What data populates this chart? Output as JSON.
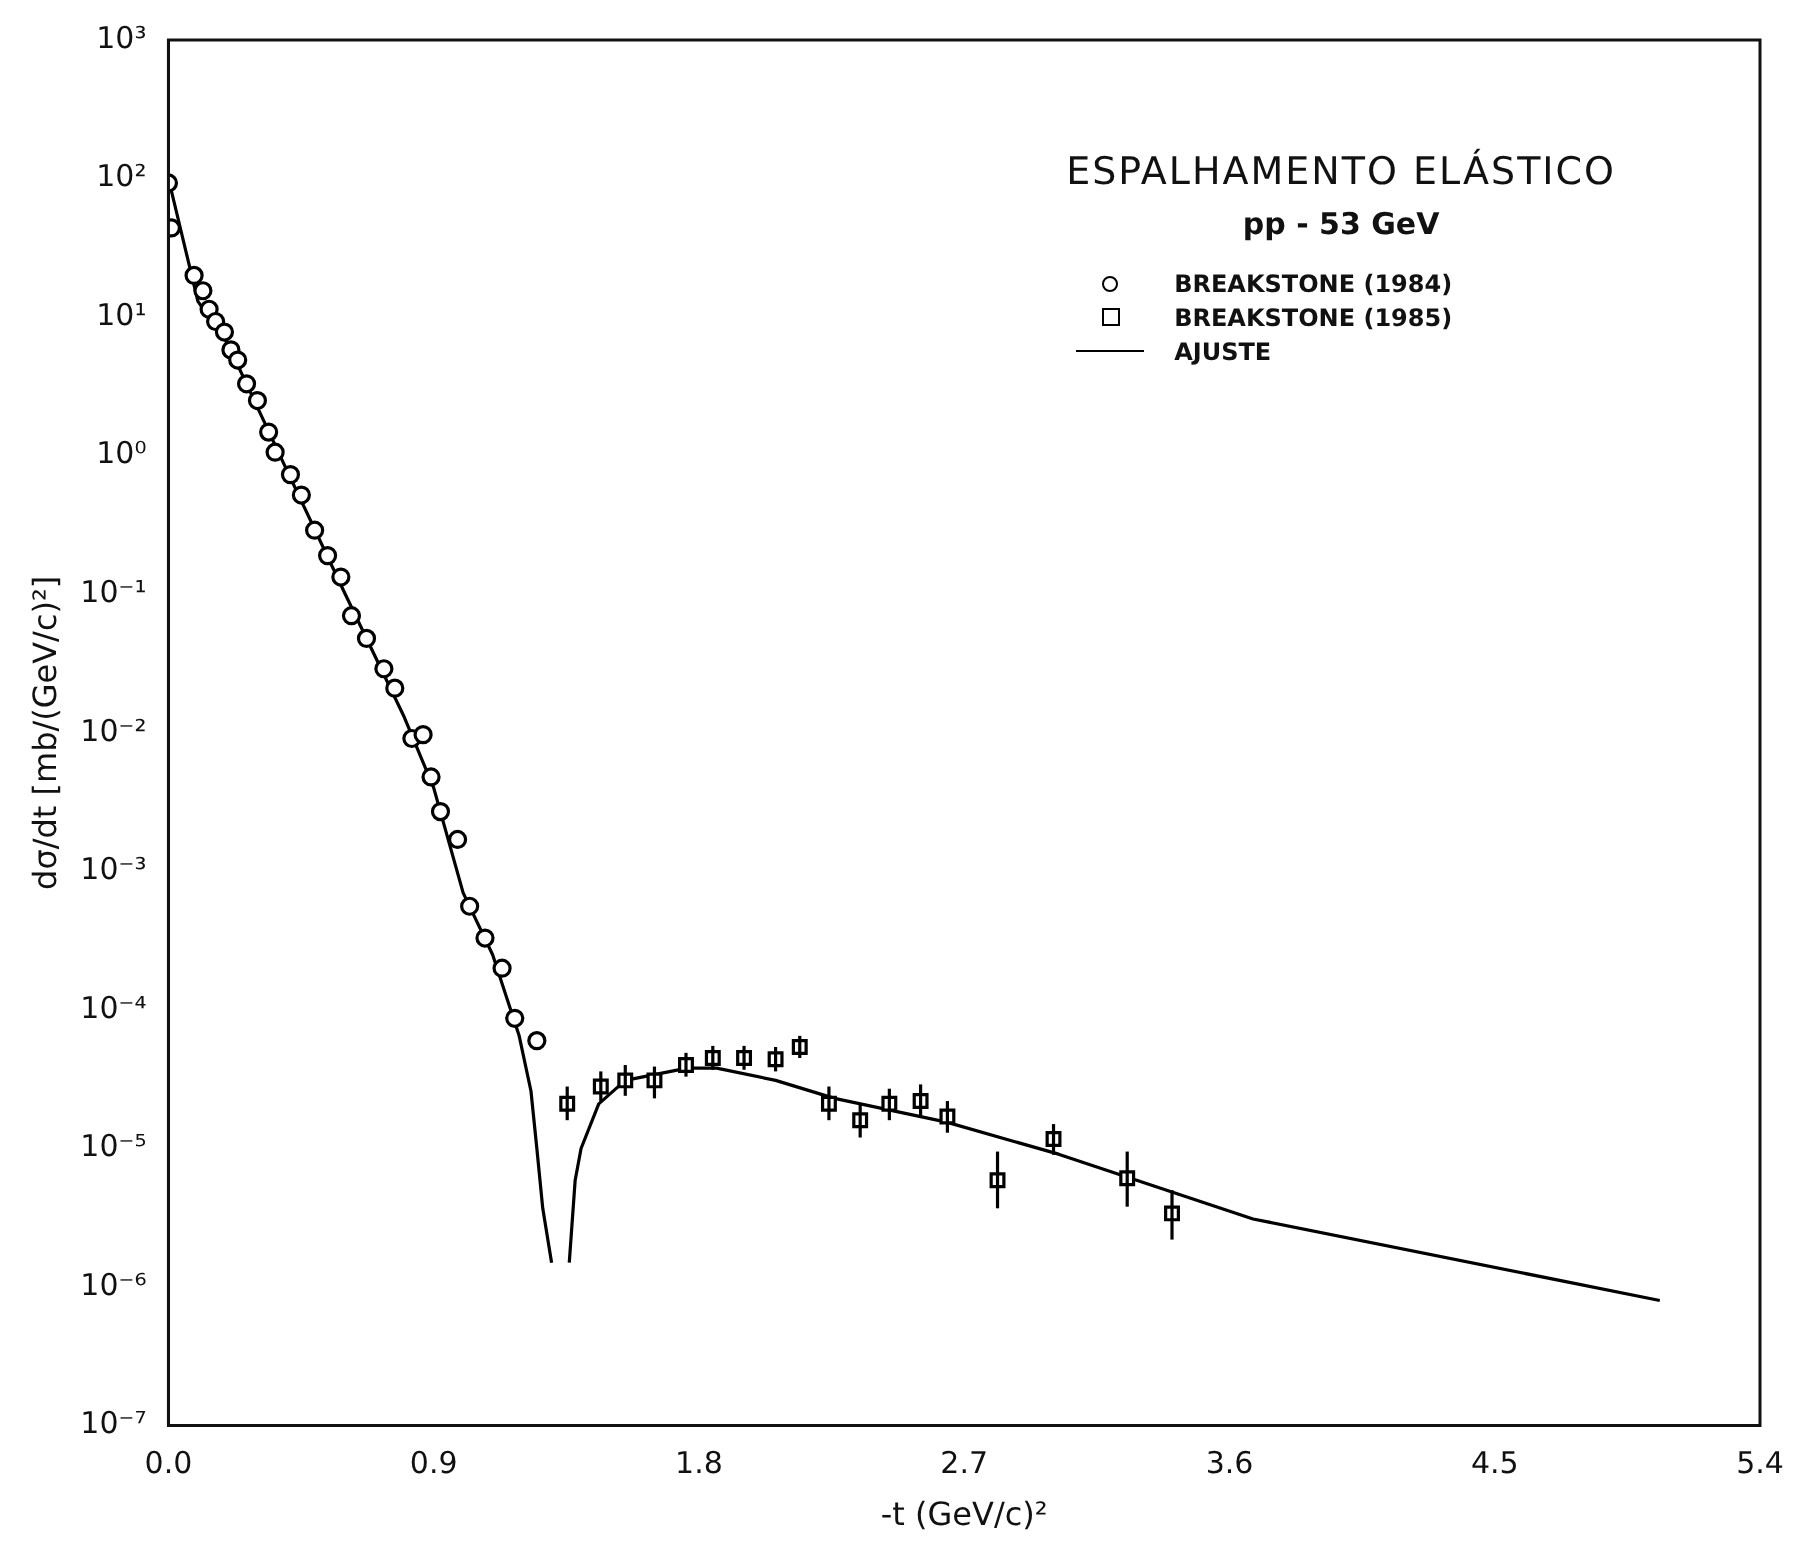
{
  "chart_data": {
    "type": "scatter",
    "title": "ESPALHAMENTO ELÁSTICO",
    "subtitle": "pp - 53 GeV",
    "xlabel": "-t (GeV/c)²",
    "ylabel": "dσ/dt [mb/(GeV/c)²]",
    "log": "y",
    "grid": false,
    "legend": "top right",
    "xlim": [
      0,
      5.4
    ],
    "xticks": [
      {
        "value": 0,
        "label": "0.0"
      },
      0.9,
      1.8,
      2.7,
      3.6,
      4.5,
      5.4
    ],
    "ylim": [
      1e-07,
      1000
    ],
    "yticks": [
      {
        "value": 1e-07,
        "label": "10⁻⁷"
      },
      {
        "value": 1e-06,
        "label": "10⁻⁶"
      },
      {
        "value": 1e-05,
        "label": "10⁻⁵"
      },
      {
        "value": 0.0001,
        "label": "10⁻⁴"
      },
      {
        "value": 0.001,
        "label": "10⁻³"
      },
      {
        "value": 0.01,
        "label": "10⁻²"
      },
      {
        "value": 0.1,
        "label": "10⁻¹"
      },
      {
        "value": 1,
        "label": "10⁰"
      },
      {
        "value": 10,
        "label": "10¹"
      },
      {
        "value": 100,
        "label": "10²"
      },
      {
        "value": 1000,
        "label": "10³"
      }
    ],
    "series": [
      {
        "name": "BREAKSTONE (1984)",
        "type": "scatter",
        "marker": "circle",
        "color": "#000000",
        "x": [
          0,
          0.01,
          0.087,
          0.117,
          0.138,
          0.16,
          0.19,
          0.212,
          0.235,
          0.265,
          0.302,
          0.34,
          0.362,
          0.414,
          0.451,
          0.496,
          0.54,
          0.585,
          0.621,
          0.672,
          0.731,
          0.768,
          0.826,
          0.864,
          0.891,
          0.923,
          0.981,
          1.022,
          1.074,
          1.132,
          1.175,
          1.25
        ],
        "values": [
          93,
          44,
          20,
          15.5,
          11.4,
          9.3,
          7.8,
          5.8,
          4.9,
          3.3,
          2.5,
          1.48,
          1.06,
          0.73,
          0.52,
          0.29,
          0.19,
          0.133,
          0.07,
          0.048,
          0.029,
          0.021,
          0.0091,
          0.0097,
          0.0048,
          0.0027,
          0.0017,
          0.00056,
          0.00033,
          0.0002,
          8.7e-05,
          6e-05
        ]
      },
      {
        "name": "BREAKSTONE (1985)",
        "type": "scatter",
        "marker": "square",
        "color": "#000000",
        "x": [
          1.353,
          1.467,
          1.55,
          1.649,
          1.756,
          1.847,
          1.953,
          2.06,
          2.142,
          2.241,
          2.347,
          2.446,
          2.552,
          2.643,
          2.813,
          3.003,
          3.253,
          3.405
        ],
        "values": [
          2.1e-05,
          2.8e-05,
          3.1e-05,
          3.1e-05,
          4e-05,
          4.5e-05,
          4.5e-05,
          4.4e-05,
          5.4e-05,
          2.1e-05,
          1.6e-05,
          2.1e-05,
          2.2e-05,
          1.7e-05,
          5.9e-06,
          1.17e-05,
          6.1e-06,
          3.4e-06
        ],
        "errors": [
          [
            1.6e-05,
            2.8e-05
          ],
          [
            2.2e-05,
            3.6e-05
          ],
          [
            2.4e-05,
            4e-05
          ],
          [
            2.3e-05,
            3.9e-05
          ],
          [
            3.3e-05,
            4.9e-05
          ],
          [
            3.7e-05,
            5.5e-05
          ],
          [
            3.7e-05,
            5.5e-05
          ],
          [
            3.6e-05,
            5.4e-05
          ],
          [
            4.5e-05,
            6.5e-05
          ],
          [
            1.6e-05,
            2.8e-05
          ],
          [
            1.2e-05,
            2.1e-05
          ],
          [
            1.6e-05,
            2.7e-05
          ],
          [
            1.7e-05,
            2.9e-05
          ],
          [
            1.3e-05,
            2.2e-05
          ],
          [
            3.7e-06,
            9.5e-06
          ],
          [
            9e-06,
            1.5e-05
          ],
          [
            3.8e-06,
            9.5e-06
          ],
          [
            2.2e-06,
            5e-06
          ]
        ]
      },
      {
        "name": "AJUSTE",
        "type": "line",
        "marker": "none",
        "line_style": "solid",
        "color": "#000000",
        "x": [
          0,
          0.1,
          0.2,
          0.4,
          0.6,
          0.8,
          0.9,
          1.0,
          1.1,
          1.19,
          1.23,
          1.25,
          1.27,
          1.3,
          1.33,
          1.36,
          1.38,
          1.4,
          1.46,
          1.55,
          1.76,
          1.86,
          2.06,
          2.26,
          2.64,
          3.02,
          3.68,
          5.06
        ],
        "values": [
          100,
          13,
          6.5,
          0.8,
          0.1,
          0.013,
          0.004,
          0.0007,
          0.00025,
          6.5e-05,
          2.6e-05,
          1e-05,
          3.7e-06,
          1.5e-06,
          null,
          1.5e-06,
          5.9e-06,
          1e-05,
          2.1e-05,
          3.1e-05,
          3.8e-05,
          3.8e-05,
          3.1e-05,
          2.3e-05,
          1.55e-05,
          9.1e-06,
          3.1e-06,
          8e-07
        ]
      }
    ]
  }
}
